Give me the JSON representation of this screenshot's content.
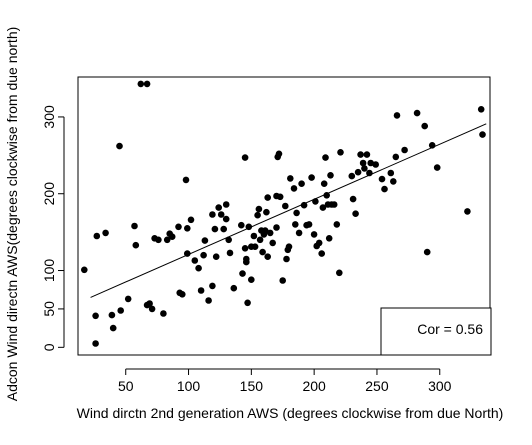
{
  "chart_data": {
    "type": "scatter",
    "title": "",
    "xlabel": "Wind dirctn 2nd generation AWS (degrees clockwise from due North)",
    "ylabel": "Adcon Wind directn AWS(degrees clockwise from due north)",
    "xlim": [
      12,
      340
    ],
    "ylim": [
      -10,
      352
    ],
    "x_ticks": [
      50,
      100,
      150,
      200,
      250,
      300
    ],
    "y_ticks": [
      0,
      50,
      100,
      200,
      300
    ],
    "grid": false,
    "legend": "none",
    "colors": {
      "points": "#000000",
      "fit_line": "#000000",
      "axes": "#000000",
      "background": "#ffffff"
    },
    "annotation": {
      "text": "Cor = 0.56",
      "position": "bottom-right boxed"
    },
    "fit_line": {
      "x": [
        22,
        337
      ],
      "y": [
        65,
        291
      ]
    },
    "points": [
      [
        17,
        101
      ],
      [
        26,
        41
      ],
      [
        26,
        5
      ],
      [
        27,
        145
      ],
      [
        34,
        149
      ],
      [
        39,
        42
      ],
      [
        40,
        25
      ],
      [
        45,
        262
      ],
      [
        46,
        48
      ],
      [
        52,
        63
      ],
      [
        57,
        158
      ],
      [
        58,
        133
      ],
      [
        62,
        343
      ],
      [
        67,
        343
      ],
      [
        67,
        55
      ],
      [
        69,
        57
      ],
      [
        71,
        50
      ],
      [
        73,
        142
      ],
      [
        76,
        140
      ],
      [
        80,
        44
      ],
      [
        83,
        140
      ],
      [
        85,
        148
      ],
      [
        87,
        144
      ],
      [
        92,
        157
      ],
      [
        93,
        71
      ],
      [
        95,
        69
      ],
      [
        98,
        218
      ],
      [
        99,
        155
      ],
      [
        99,
        122
      ],
      [
        102,
        166
      ],
      [
        105,
        113
      ],
      [
        108,
        103
      ],
      [
        110,
        74
      ],
      [
        112,
        120
      ],
      [
        113,
        139
      ],
      [
        116,
        61
      ],
      [
        119,
        173
      ],
      [
        119,
        80
      ],
      [
        121,
        154
      ],
      [
        122,
        118
      ],
      [
        124,
        182
      ],
      [
        126,
        173
      ],
      [
        128,
        154
      ],
      [
        130,
        186
      ],
      [
        130,
        167
      ],
      [
        132,
        140
      ],
      [
        133,
        123
      ],
      [
        136,
        77
      ],
      [
        142,
        159
      ],
      [
        143,
        96
      ],
      [
        145,
        129
      ],
      [
        145,
        247
      ],
      [
        146,
        115
      ],
      [
        146,
        111
      ],
      [
        147,
        58
      ],
      [
        148,
        157
      ],
      [
        150,
        88
      ],
      [
        150,
        131
      ],
      [
        152,
        145
      ],
      [
        153,
        131
      ],
      [
        155,
        172
      ],
      [
        156,
        180
      ],
      [
        157,
        140
      ],
      [
        158,
        152
      ],
      [
        159,
        124
      ],
      [
        160,
        147
      ],
      [
        161,
        152
      ],
      [
        162,
        176
      ],
      [
        163,
        195
      ],
      [
        163,
        118
      ],
      [
        165,
        149
      ],
      [
        167,
        136
      ],
      [
        170,
        156
      ],
      [
        170,
        197
      ],
      [
        171,
        248
      ],
      [
        172,
        252
      ],
      [
        173,
        196
      ],
      [
        175,
        87
      ],
      [
        177,
        184
      ],
      [
        178,
        115
      ],
      [
        179,
        127
      ],
      [
        180,
        131
      ],
      [
        181,
        220
      ],
      [
        184,
        207
      ],
      [
        185,
        160
      ],
      [
        186,
        175
      ],
      [
        188,
        149
      ],
      [
        190,
        213
      ],
      [
        192,
        185
      ],
      [
        194,
        159
      ],
      [
        196,
        160
      ],
      [
        198,
        221
      ],
      [
        200,
        147
      ],
      [
        201,
        190
      ],
      [
        202,
        132
      ],
      [
        204,
        136
      ],
      [
        206,
        122
      ],
      [
        207,
        182
      ],
      [
        208,
        213
      ],
      [
        209,
        247
      ],
      [
        210,
        198
      ],
      [
        211,
        186
      ],
      [
        212,
        142
      ],
      [
        213,
        224
      ],
      [
        214,
        186
      ],
      [
        216,
        186
      ],
      [
        218,
        160
      ],
      [
        220,
        97
      ],
      [
        221,
        254
      ],
      [
        230,
        223
      ],
      [
        231,
        193
      ],
      [
        233,
        174
      ],
      [
        235,
        228
      ],
      [
        237,
        251
      ],
      [
        239,
        240
      ],
      [
        240,
        233
      ],
      [
        242,
        251
      ],
      [
        244,
        227
      ],
      [
        245,
        240
      ],
      [
        249,
        238
      ],
      [
        254,
        219
      ],
      [
        256,
        206
      ],
      [
        261,
        227
      ],
      [
        263,
        216
      ],
      [
        265,
        248
      ],
      [
        266,
        302
      ],
      [
        272,
        257
      ],
      [
        282,
        305
      ],
      [
        288,
        288
      ],
      [
        290,
        124
      ],
      [
        294,
        263
      ],
      [
        298,
        234
      ],
      [
        322,
        177
      ],
      [
        333,
        310
      ],
      [
        334,
        277
      ]
    ]
  }
}
